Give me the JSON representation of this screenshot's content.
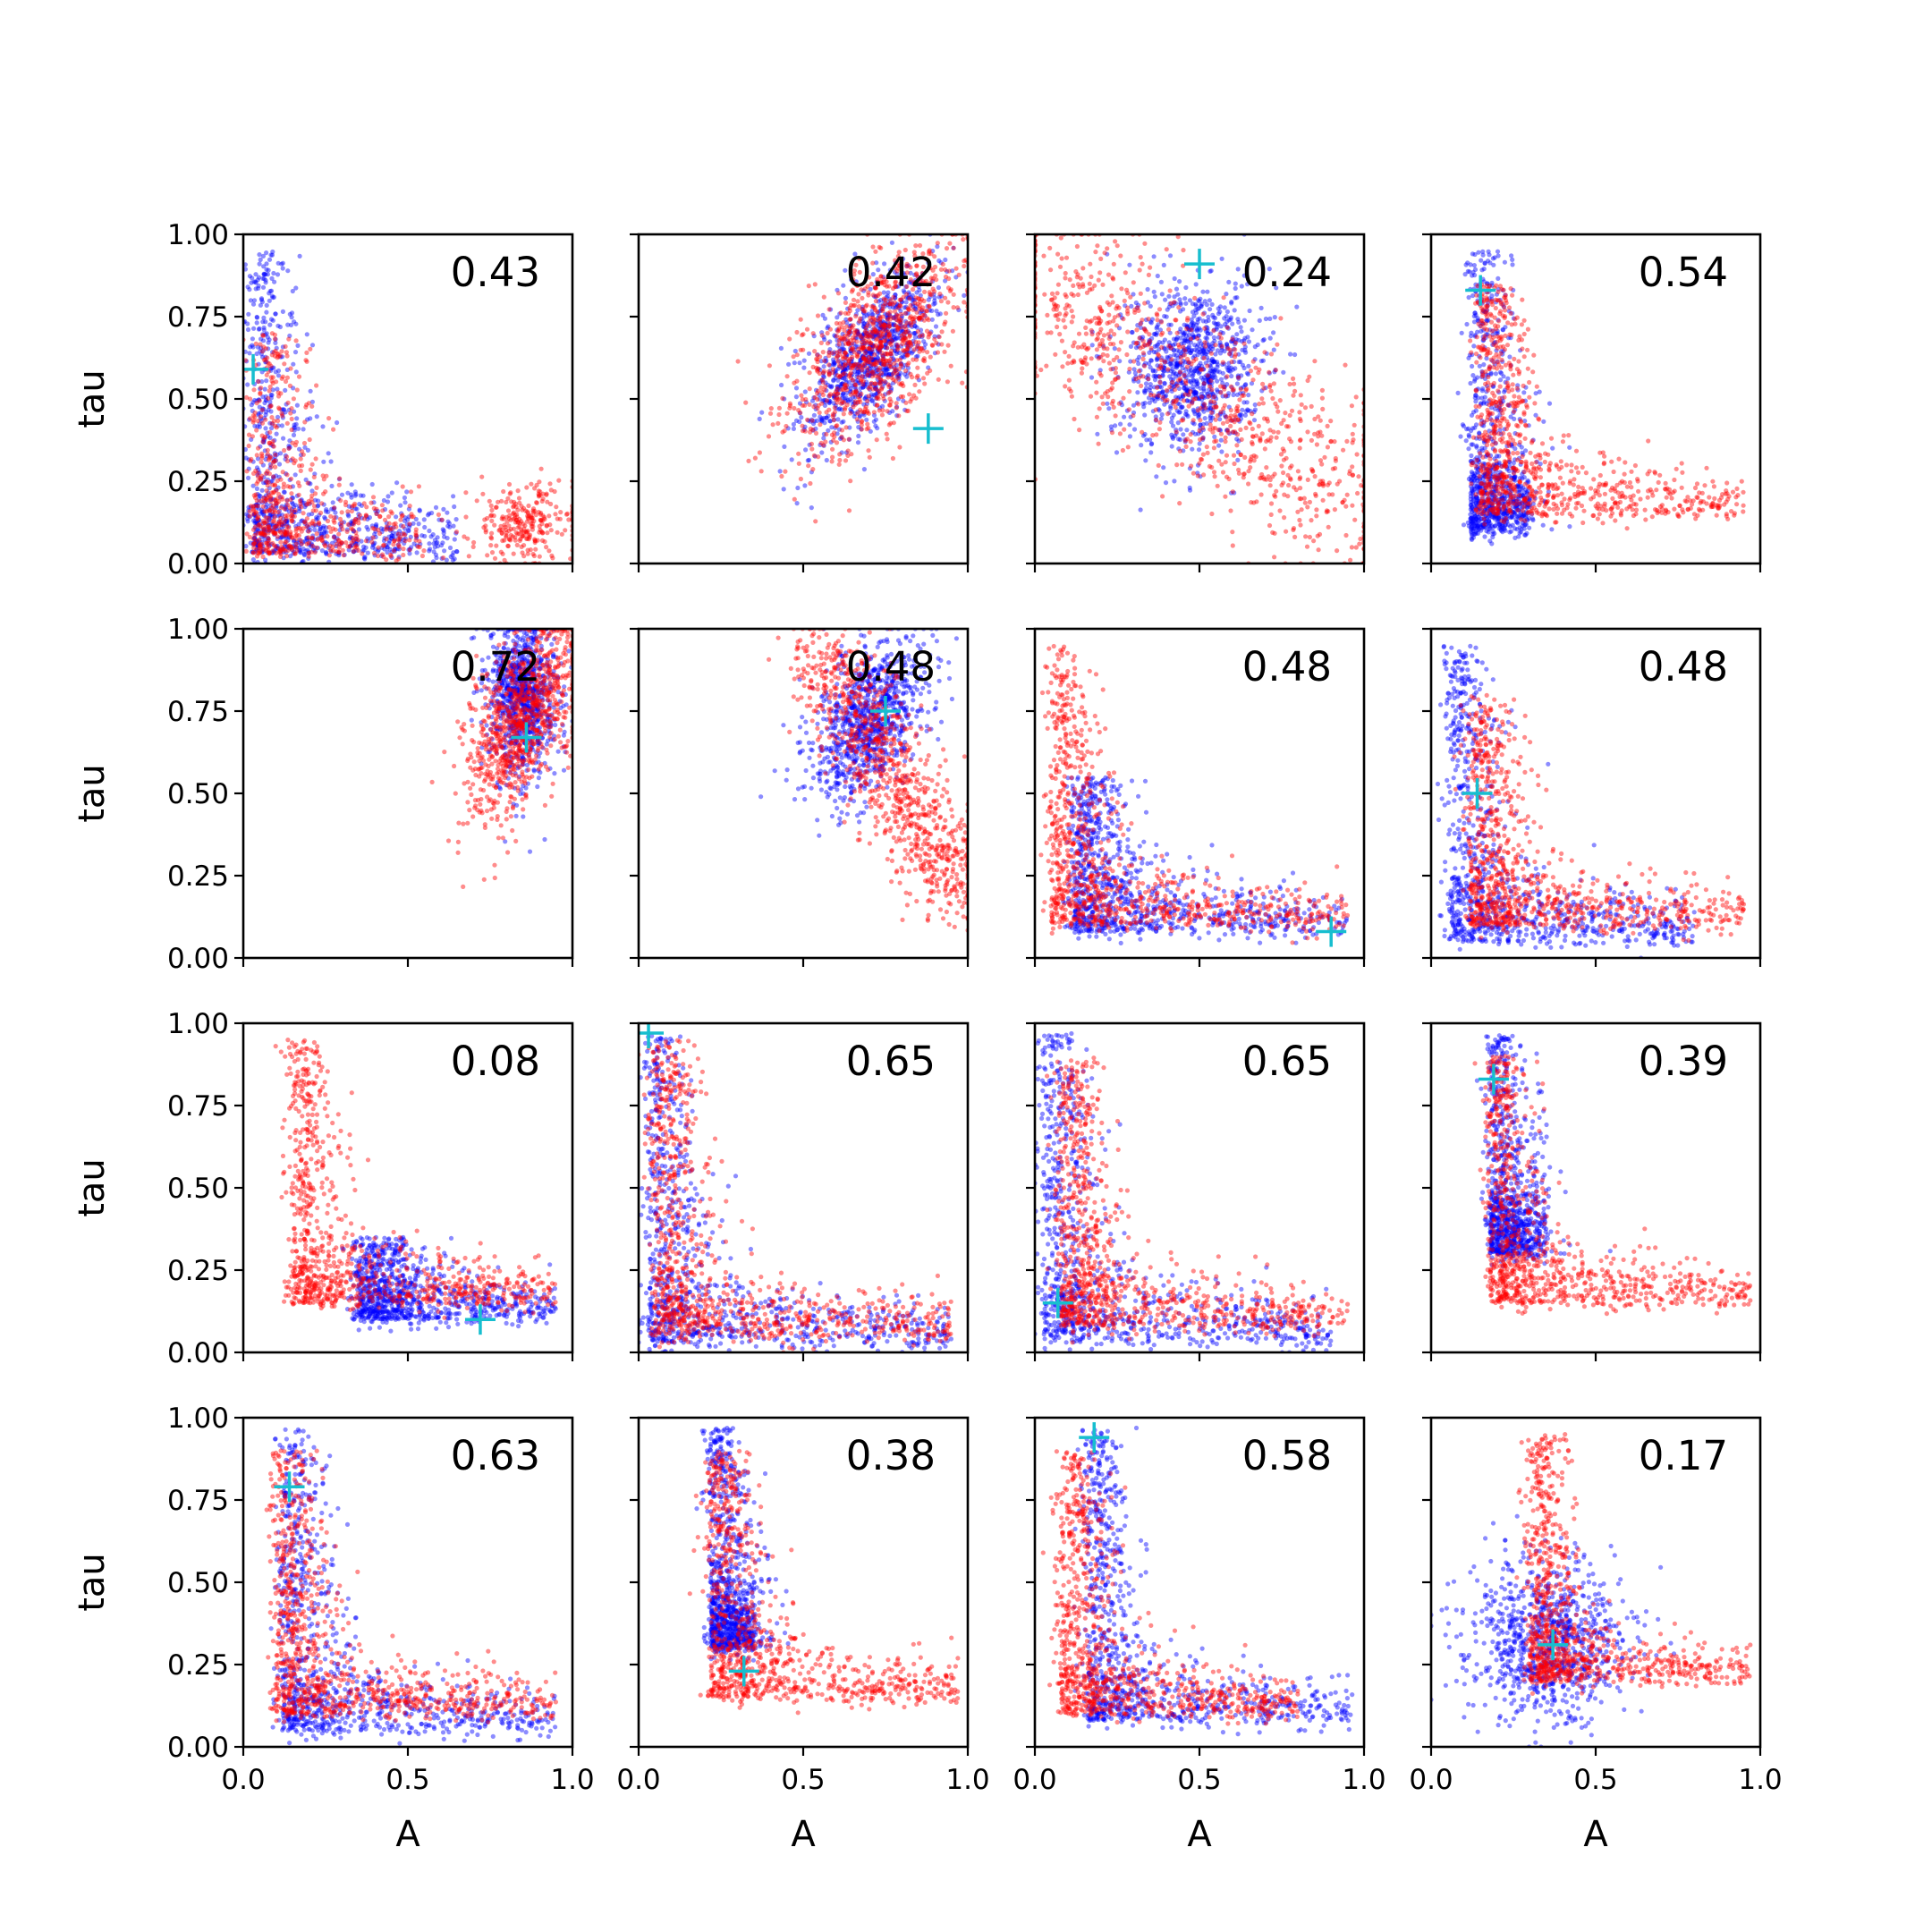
{
  "chart_data": {
    "type": "scatter",
    "grid": false,
    "layout": "4x4 grid of scatter panels, shared axes",
    "xlabel": "A",
    "ylabel": "tau",
    "xlim": [
      0,
      1
    ],
    "ylim": [
      0,
      1
    ],
    "xticks": [
      "0.0",
      "0.5",
      "1.0"
    ],
    "yticks": [
      "0.00",
      "0.25",
      "0.50",
      "0.75",
      "1.00"
    ],
    "series_colors": {
      "first": "#0000ff",
      "second": "#ff0000",
      "marker": "#17becf"
    },
    "points_per_series": 900,
    "panels": [
      {
        "label": "0.43",
        "marker": [
          0.03,
          0.59
        ],
        "blue": {
          "kind": "L",
          "ax": 0.03,
          "ay": 0.03,
          "xlen": 0.65,
          "ylen": 0.95
        },
        "red": {
          "kind": "L",
          "ax": 0.03,
          "ay": 0.03,
          "xlen": 0.55,
          "ylen": 0.7,
          "blob": [
            0.85,
            0.12,
            0.08,
            0.06
          ]
        }
      },
      {
        "label": "0.42",
        "marker": [
          0.88,
          0.41
        ],
        "blue": {
          "kind": "blob",
          "cx": 0.7,
          "cy": 0.63,
          "sx": 0.07,
          "sy": 0.14,
          "rot": -0.6
        },
        "red": {
          "kind": "blob",
          "cx": 0.72,
          "cy": 0.65,
          "sx": 0.09,
          "sy": 0.18,
          "rot": -0.6
        }
      },
      {
        "label": "0.24",
        "marker": [
          0.5,
          0.91
        ],
        "blue": {
          "kind": "blob",
          "cx": 0.48,
          "cy": 0.6,
          "sx": 0.1,
          "sy": 0.13,
          "rot": -0.2
        },
        "red": {
          "kind": "band",
          "x0": 0.0,
          "y0": 0.9,
          "x1": 1.0,
          "y1": 0.15,
          "w": 0.13
        }
      },
      {
        "label": "0.54",
        "marker": [
          0.15,
          0.83
        ],
        "blue": {
          "kind": "L",
          "ax": 0.12,
          "ay": 0.1,
          "xlen": 0.3,
          "ylen": 0.95
        },
        "red": {
          "kind": "L",
          "ax": 0.15,
          "ay": 0.15,
          "xlen": 0.95,
          "ylen": 0.85
        }
      },
      {
        "label": "0.72",
        "marker": [
          0.86,
          0.67
        ],
        "blue": {
          "kind": "blob",
          "cx": 0.85,
          "cy": 0.8,
          "sx": 0.05,
          "sy": 0.12,
          "rot": 0
        },
        "red": {
          "kind": "blob",
          "cx": 0.85,
          "cy": 0.73,
          "sx": 0.07,
          "sy": 0.16,
          "rot": -0.4
        }
      },
      {
        "label": "0.48",
        "marker": [
          0.75,
          0.75
        ],
        "blue": {
          "kind": "blob",
          "cx": 0.7,
          "cy": 0.72,
          "sx": 0.07,
          "sy": 0.13,
          "rot": -0.5
        },
        "red": {
          "kind": "band",
          "x0": 0.55,
          "y0": 0.95,
          "x1": 0.97,
          "y1": 0.2,
          "w": 0.07
        }
      },
      {
        "label": "0.48",
        "marker": [
          0.9,
          0.08
        ],
        "blue": {
          "kind": "L",
          "ax": 0.12,
          "ay": 0.08,
          "xlen": 0.95,
          "ylen": 0.55
        },
        "red": {
          "kind": "L",
          "ax": 0.05,
          "ay": 0.1,
          "xlen": 0.95,
          "ylen": 0.95
        }
      },
      {
        "label": "0.48",
        "marker": [
          0.14,
          0.5
        ],
        "blue": {
          "kind": "L",
          "ax": 0.06,
          "ay": 0.05,
          "xlen": 0.8,
          "ylen": 0.95
        },
        "red": {
          "kind": "L",
          "ax": 0.12,
          "ay": 0.1,
          "xlen": 0.95,
          "ylen": 0.8
        }
      },
      {
        "label": "0.08",
        "marker": [
          0.72,
          0.1
        ],
        "blue": {
          "kind": "L",
          "ax": 0.35,
          "ay": 0.1,
          "xlen": 0.95,
          "ylen": 0.35
        },
        "red": {
          "kind": "L",
          "ax": 0.15,
          "ay": 0.15,
          "xlen": 0.95,
          "ylen": 0.95
        }
      },
      {
        "label": "0.65",
        "marker": [
          0.03,
          0.97
        ],
        "blue": {
          "kind": "L",
          "ax": 0.03,
          "ay": 0.03,
          "xlen": 0.95,
          "ylen": 0.97
        },
        "red": {
          "kind": "L",
          "ax": 0.05,
          "ay": 0.05,
          "xlen": 0.95,
          "ylen": 0.95
        }
      },
      {
        "label": "0.65",
        "marker": [
          0.07,
          0.15
        ],
        "blue": {
          "kind": "L",
          "ax": 0.03,
          "ay": 0.03,
          "xlen": 0.9,
          "ylen": 0.97
        },
        "red": {
          "kind": "L",
          "ax": 0.08,
          "ay": 0.08,
          "xlen": 0.95,
          "ylen": 0.9
        }
      },
      {
        "label": "0.39",
        "marker": [
          0.19,
          0.83
        ],
        "blue": {
          "kind": "L",
          "ax": 0.18,
          "ay": 0.3,
          "xlen": 0.35,
          "ylen": 0.97
        },
        "red": {
          "kind": "L",
          "ax": 0.18,
          "ay": 0.15,
          "xlen": 0.97,
          "ylen": 0.9
        }
      },
      {
        "label": "0.63",
        "marker": [
          0.14,
          0.79
        ],
        "blue": {
          "kind": "L",
          "ax": 0.12,
          "ay": 0.05,
          "xlen": 0.95,
          "ylen": 0.97
        },
        "red": {
          "kind": "L",
          "ax": 0.1,
          "ay": 0.1,
          "xlen": 0.95,
          "ylen": 0.9
        }
      },
      {
        "label": "0.38",
        "marker": [
          0.32,
          0.23
        ],
        "blue": {
          "kind": "L",
          "ax": 0.22,
          "ay": 0.3,
          "xlen": 0.35,
          "ylen": 0.97
        },
        "red": {
          "kind": "L",
          "ax": 0.22,
          "ay": 0.15,
          "xlen": 0.97,
          "ylen": 0.9
        }
      },
      {
        "label": "0.58",
        "marker": [
          0.18,
          0.94
        ],
        "blue": {
          "kind": "L",
          "ax": 0.16,
          "ay": 0.08,
          "xlen": 0.97,
          "ylen": 0.97
        },
        "red": {
          "kind": "L",
          "ax": 0.08,
          "ay": 0.1,
          "xlen": 0.8,
          "ylen": 0.9
        }
      },
      {
        "label": "0.17",
        "marker": [
          0.37,
          0.31
        ],
        "blue": {
          "kind": "blob",
          "cx": 0.35,
          "cy": 0.32,
          "sx": 0.12,
          "sy": 0.12,
          "rot": -0.6
        },
        "red": {
          "kind": "L",
          "ax": 0.3,
          "ay": 0.2,
          "xlen": 0.97,
          "ylen": 0.95
        }
      }
    ]
  }
}
